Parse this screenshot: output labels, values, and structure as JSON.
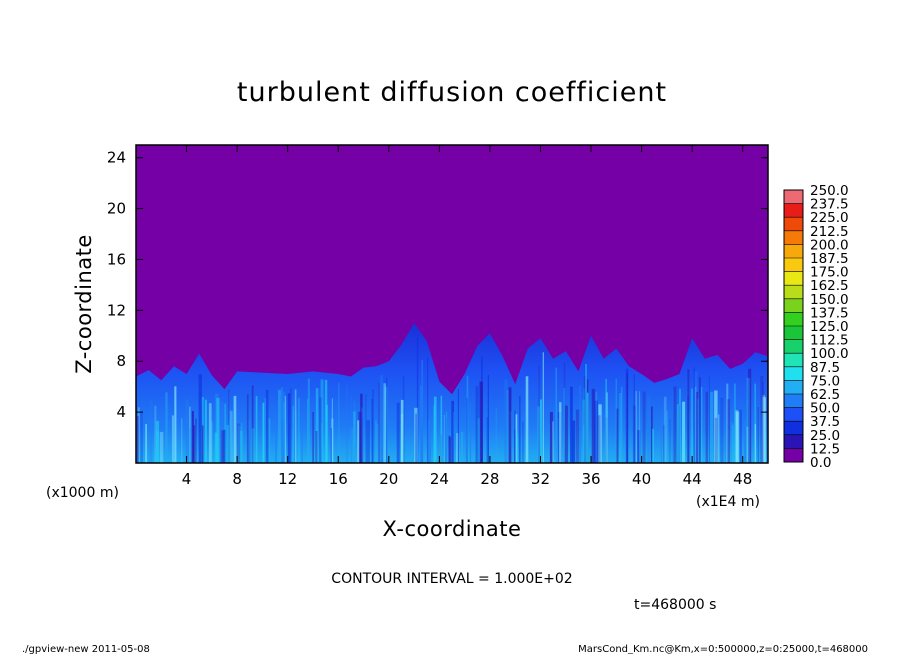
{
  "chart_data": {
    "type": "heatmap",
    "title": "turbulent diffusion coefficient",
    "xlabel": "X-coordinate",
    "ylabel": "Z-coordinate",
    "x_unit_note": "(x1E4 m)",
    "y_unit_note": "(x1000 m)",
    "x_ticks": [
      4,
      8,
      12,
      16,
      20,
      24,
      28,
      32,
      36,
      40,
      44,
      48
    ],
    "y_ticks": [
      4,
      8,
      12,
      16,
      20,
      24
    ],
    "xlim": [
      0,
      50
    ],
    "ylim": [
      0,
      25
    ],
    "colorbar": {
      "levels": [
        "0.0",
        "12.5",
        "25.0",
        "37.5",
        "50.0",
        "62.5",
        "75.0",
        "87.5",
        "100.0",
        "112.5",
        "125.0",
        "137.5",
        "150.0",
        "162.5",
        "175.0",
        "187.5",
        "200.0",
        "212.5",
        "225.0",
        "237.5",
        "250.0"
      ],
      "colors": [
        "#7400a6",
        "#2a14b5",
        "#1030e0",
        "#1e50f8",
        "#1f7df5",
        "#22aef2",
        "#20e0f0",
        "#20e3b6",
        "#19d16a",
        "#1ac53a",
        "#34d01f",
        "#7ad21c",
        "#b9dd18",
        "#e9e815",
        "#f9c90f",
        "#f7a90c",
        "#f57a08",
        "#f04a0a",
        "#e81d1a",
        "#ed6a75"
      ]
    },
    "turbulent_layer_top": [
      [
        0,
        6.8
      ],
      [
        1,
        7.3
      ],
      [
        2,
        6.5
      ],
      [
        3,
        7.6
      ],
      [
        4,
        7.0
      ],
      [
        5,
        8.6
      ],
      [
        6,
        6.9
      ],
      [
        7,
        5.8
      ],
      [
        8,
        7.2
      ],
      [
        10,
        7.1
      ],
      [
        12,
        7.0
      ],
      [
        14,
        7.2
      ],
      [
        16,
        7.0
      ],
      [
        17,
        6.8
      ],
      [
        18,
        7.5
      ],
      [
        19,
        7.6
      ],
      [
        20,
        8.0
      ],
      [
        21,
        9.3
      ],
      [
        22,
        11.0
      ],
      [
        23,
        9.6
      ],
      [
        24,
        6.4
      ],
      [
        25,
        5.4
      ],
      [
        26,
        7.0
      ],
      [
        27,
        9.2
      ],
      [
        28,
        10.2
      ],
      [
        29,
        8.4
      ],
      [
        30,
        6.2
      ],
      [
        31,
        9.0
      ],
      [
        32,
        9.8
      ],
      [
        33,
        8.2
      ],
      [
        34,
        8.8
      ],
      [
        35,
        7.2
      ],
      [
        36,
        10.0
      ],
      [
        37,
        8.2
      ],
      [
        38,
        9.0
      ],
      [
        39,
        7.6
      ],
      [
        40,
        7.0
      ],
      [
        41,
        6.3
      ],
      [
        42,
        6.6
      ],
      [
        43,
        7.0
      ],
      [
        44,
        9.8
      ],
      [
        45,
        8.2
      ],
      [
        46,
        8.5
      ],
      [
        47,
        7.4
      ],
      [
        48,
        7.8
      ],
      [
        49,
        8.7
      ],
      [
        50,
        8.4
      ]
    ],
    "contour_interval_label": "CONTOUR INTERVAL = 1.000E+02",
    "time_label": "t=468000 s"
  },
  "footer": {
    "left": "./gpview-new   2011-05-08",
    "right": "MarsCond_Km.nc@Km,x=0:500000,z=0:25000,t=468000"
  },
  "colors": {
    "background_field": "#7400a6"
  }
}
